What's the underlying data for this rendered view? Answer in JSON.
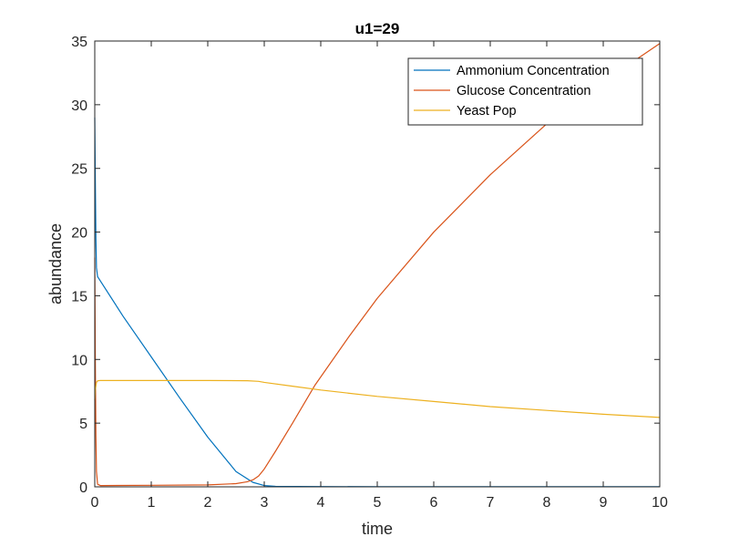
{
  "chart_data": {
    "type": "line",
    "title": "u1=29",
    "xlabel": "time",
    "ylabel": "abundance",
    "xlim": [
      0,
      10
    ],
    "ylim": [
      0,
      35
    ],
    "xticks": [
      0,
      1,
      2,
      3,
      4,
      5,
      6,
      7,
      8,
      9,
      10
    ],
    "yticks": [
      0,
      5,
      10,
      15,
      20,
      25,
      30,
      35
    ],
    "grid": false,
    "legend_position": "northeast",
    "series": [
      {
        "name": "Ammonium Concentration",
        "color": "#0072BD",
        "x": [
          0,
          0.01,
          0.02,
          0.03,
          0.05,
          0.5,
          1.0,
          1.5,
          2.0,
          2.5,
          2.8,
          3.0,
          3.2,
          4,
          5,
          6,
          7,
          8,
          9,
          10
        ],
        "y": [
          29,
          24,
          19.5,
          17.2,
          16.5,
          13.4,
          10.2,
          7.0,
          3.9,
          1.2,
          0.35,
          0.1,
          0.04,
          0.02,
          0.01,
          0.01,
          0.01,
          0.01,
          0.01,
          0.01
        ]
      },
      {
        "name": "Glucose Concentration",
        "color": "#D95319",
        "x": [
          0,
          0.01,
          0.02,
          0.03,
          0.05,
          0.1,
          1.0,
          2.0,
          2.5,
          2.7,
          2.8,
          2.9,
          3.0,
          3.2,
          3.5,
          3.9,
          4.5,
          5,
          6,
          7,
          8,
          9,
          10
        ],
        "y": [
          18,
          10,
          4,
          1.2,
          0.2,
          0.1,
          0.12,
          0.15,
          0.25,
          0.4,
          0.55,
          0.85,
          1.4,
          2.8,
          5.0,
          8.0,
          11.8,
          14.8,
          20.0,
          24.5,
          28.5,
          31.8,
          34.8
        ]
      },
      {
        "name": "Yeast Pop",
        "color": "#EDB120",
        "x": [
          0,
          0.01,
          0.03,
          0.05,
          0.1,
          1.0,
          2.0,
          2.7,
          2.9,
          3.0,
          3.5,
          4,
          5,
          6,
          7,
          8,
          9,
          10
        ],
        "y": [
          6.8,
          7.6,
          8.2,
          8.32,
          8.35,
          8.35,
          8.35,
          8.33,
          8.28,
          8.2,
          7.9,
          7.6,
          7.1,
          6.7,
          6.3,
          6.0,
          5.7,
          5.45
        ]
      }
    ]
  },
  "legend": {
    "items": [
      {
        "label": "Ammonium Concentration",
        "color": "#0072BD"
      },
      {
        "label": "Glucose Concentration",
        "color": "#D95319"
      },
      {
        "label": "Yeast Pop",
        "color": "#EDB120"
      }
    ]
  },
  "colors": {
    "axis": "#262626",
    "legend_border": "#262626",
    "background": "#ffffff"
  }
}
